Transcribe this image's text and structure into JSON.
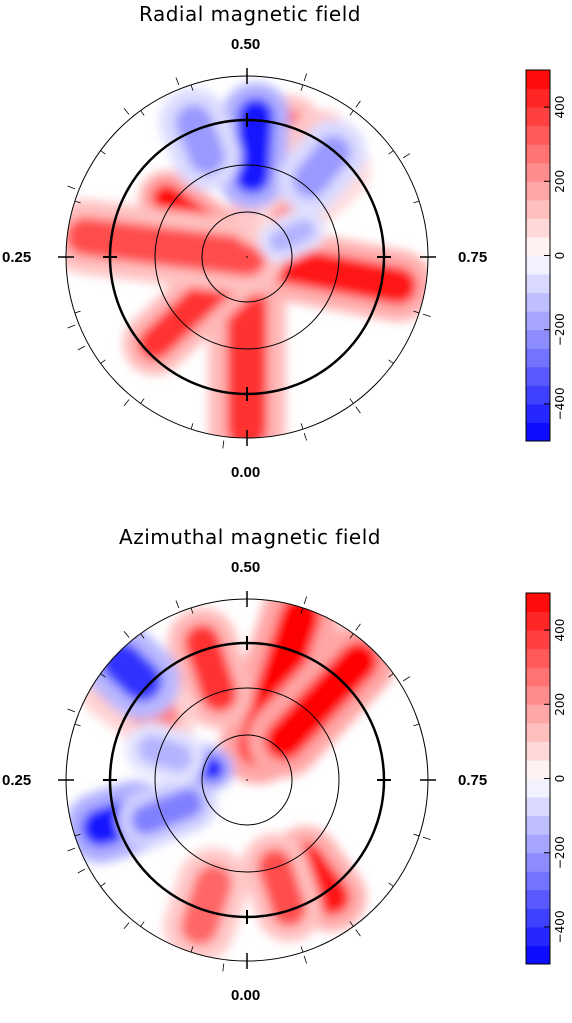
{
  "chart_data": [
    {
      "type": "heatmap",
      "title": "Radial magnetic field",
      "phase_labels": {
        "top": "0.50",
        "bottom": "0.00",
        "left": "0.25",
        "right": "0.75"
      },
      "colorbar": {
        "ticks": [
          400,
          200,
          0,
          -200,
          -400
        ],
        "range": [
          -500,
          500
        ],
        "levels": [
          -500,
          -450,
          -400,
          -350,
          -300,
          -250,
          -200,
          -150,
          -100,
          -50,
          0,
          50,
          100,
          150,
          200,
          250,
          300,
          350,
          400,
          450,
          500
        ]
      },
      "features": [
        {
          "kind": "red",
          "phase": 0.0,
          "r_from": 0.0,
          "r_to": 0.95,
          "value": 400
        },
        {
          "kind": "red",
          "phase": 0.78,
          "r_from": 0.0,
          "r_to": 0.85,
          "value": 450
        },
        {
          "kind": "red",
          "phase": 0.13,
          "r_from": 0.0,
          "r_to": 0.7,
          "value": 400
        },
        {
          "kind": "red",
          "phase": 0.35,
          "r_from": 0.0,
          "r_to": 0.55,
          "value": 500
        },
        {
          "kind": "red",
          "phase": 0.27,
          "r_from": 0.0,
          "r_to": 0.9,
          "value": 350
        },
        {
          "kind": "red",
          "phase": 0.55,
          "r_from": 0.25,
          "r_to": 0.75,
          "value": 350
        },
        {
          "kind": "red",
          "phase": 0.59,
          "r_from": 0.25,
          "r_to": 0.75,
          "value": 300
        },
        {
          "kind": "red",
          "phase": 0.63,
          "r_from": 0.3,
          "r_to": 0.7,
          "value": 200
        },
        {
          "kind": "blue",
          "phase": 0.51,
          "r_from": 0.45,
          "r_to": 0.78,
          "value": -450
        },
        {
          "kind": "blue",
          "phase": 0.44,
          "r_from": 0.6,
          "r_to": 0.8,
          "value": -200
        },
        {
          "kind": "blue",
          "phase": 0.61,
          "r_from": 0.55,
          "r_to": 0.75,
          "value": -200
        },
        {
          "kind": "blue",
          "phase": 0.68,
          "r_from": 0.2,
          "r_to": 0.35,
          "value": -150
        }
      ]
    },
    {
      "type": "heatmap",
      "title": "Azimuthal magnetic field",
      "phase_labels": {
        "top": "0.50",
        "bottom": "0.00",
        "left": "0.25",
        "right": "0.75"
      },
      "colorbar": {
        "ticks": [
          400,
          200,
          0,
          -200,
          -400
        ],
        "range": [
          -500,
          500
        ],
        "levels": [
          -500,
          -450,
          -400,
          -350,
          -300,
          -250,
          -200,
          -150,
          -100,
          -50,
          0,
          50,
          100,
          150,
          200,
          250,
          300,
          350,
          400,
          450,
          500
        ]
      },
      "features": [
        {
          "kind": "red",
          "phase": 0.55,
          "r_from": 0.2,
          "r_to": 0.95,
          "value": 500
        },
        {
          "kind": "red",
          "phase": 0.62,
          "r_from": 0.3,
          "r_to": 0.9,
          "value": 500
        },
        {
          "kind": "red",
          "phase": 0.45,
          "r_from": 0.5,
          "r_to": 0.8,
          "value": 400
        },
        {
          "kind": "red",
          "phase": 0.35,
          "r_from": 0.6,
          "r_to": 0.9,
          "value": 250
        },
        {
          "kind": "red",
          "phase": 0.9,
          "r_from": 0.55,
          "r_to": 0.8,
          "value": 450
        },
        {
          "kind": "red",
          "phase": 0.05,
          "r_from": 0.6,
          "r_to": 0.85,
          "value": 300
        },
        {
          "kind": "red",
          "phase": 0.95,
          "r_from": 0.5,
          "r_to": 0.75,
          "value": 350
        },
        {
          "kind": "blue",
          "phase": 0.2,
          "r_from": 0.65,
          "r_to": 0.85,
          "value": -450
        },
        {
          "kind": "blue",
          "phase": 0.19,
          "r_from": 0.35,
          "r_to": 0.6,
          "value": -250
        },
        {
          "kind": "blue",
          "phase": 0.3,
          "r_from": 0.2,
          "r_to": 0.35,
          "value": -450
        },
        {
          "kind": "blue",
          "phase": 0.37,
          "r_from": 0.8,
          "r_to": 0.95,
          "value": -400
        },
        {
          "kind": "blue",
          "phase": 0.3,
          "r_from": 0.4,
          "r_to": 0.55,
          "value": -150
        }
      ]
    }
  ]
}
